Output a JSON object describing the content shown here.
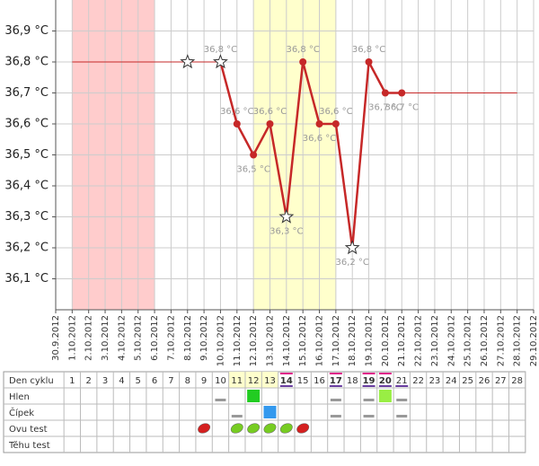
{
  "chart_data": {
    "type": "line",
    "categories": [
      "30.9.2012",
      "1.10.2012",
      "2.10.2012",
      "3.10.2012",
      "4.10.2012",
      "5.10.2012",
      "6.10.2012",
      "7.10.2012",
      "8.10.2012",
      "9.10.2012",
      "10.10.2012",
      "11.10.2012",
      "12.10.2012",
      "13.10.2012",
      "14.10.2012",
      "15.10.2012",
      "16.10.2012",
      "17.10.2012",
      "18.10.2012",
      "19.10.2012",
      "20.10.2012",
      "21.10.2012",
      "22.10.2012",
      "23.10.2012",
      "24.10.2012",
      "25.10.2012",
      "26.10.2012",
      "27.10.2012",
      "28.10.2012",
      "29.10.2012"
    ],
    "values": [
      null,
      null,
      null,
      null,
      null,
      null,
      null,
      null,
      36.8,
      null,
      36.8,
      36.6,
      36.5,
      36.6,
      36.3,
      36.8,
      36.6,
      36.6,
      36.2,
      36.8,
      36.7,
      36.7,
      null,
      null,
      null,
      null,
      null,
      null,
      null,
      null
    ],
    "value_labels": [
      null,
      null,
      null,
      null,
      null,
      null,
      null,
      null,
      null,
      null,
      "36,8 °C",
      "36,6 °C",
      "36,5 °C",
      "36,6 °C",
      "36,3 °C",
      "36,8 °C",
      "36,6 °C",
      "36,6 °C",
      "36,2 °C",
      "36,8 °C",
      "36,7 °C",
      "36,7 °C",
      null,
      null,
      null,
      null,
      null,
      null,
      null,
      null
    ],
    "markers": [
      null,
      null,
      null,
      null,
      null,
      null,
      null,
      null,
      "star",
      null,
      "star",
      "circle",
      "circle",
      "circle",
      "star",
      "circle",
      "circle",
      "circle",
      "star",
      "circle",
      "circle",
      "circle",
      null,
      null,
      null,
      null,
      null,
      null,
      null,
      null
    ],
    "color": "#c62828",
    "extension_lines": [
      {
        "from": "1.10.2012",
        "to": "10.10.2012",
        "value": 36.8
      },
      {
        "from": "21.10.2012",
        "to": "28.10.2012",
        "value": 36.7
      }
    ],
    "bands": [
      {
        "from": "1.10.2012",
        "to": "6.10.2012",
        "color": "#ffcccc"
      },
      {
        "from": "12.10.2012",
        "to": "17.10.2012",
        "color": "#ffffcc"
      }
    ],
    "ylim": [
      36.0,
      37.0
    ],
    "yticks": [
      {
        "value": 36.1,
        "label": "36,1 °C"
      },
      {
        "value": 36.2,
        "label": "36,2 °C"
      },
      {
        "value": 36.3,
        "label": "36,3 °C"
      },
      {
        "value": 36.4,
        "label": "36,4 °C"
      },
      {
        "value": 36.5,
        "label": "36,5 °C"
      },
      {
        "value": 36.6,
        "label": "36,6 °C"
      },
      {
        "value": 36.7,
        "label": "36,7 °C"
      },
      {
        "value": 36.8,
        "label": "36,8 °C"
      },
      {
        "value": 36.9,
        "label": "36,9 °C"
      }
    ],
    "grid": true
  },
  "table": {
    "header": {
      "label": "Den cyklu",
      "days": [
        1,
        2,
        3,
        4,
        5,
        6,
        7,
        8,
        9,
        10,
        11,
        12,
        13,
        14,
        15,
        16,
        17,
        18,
        19,
        20,
        21,
        22,
        23,
        24,
        25,
        26,
        27,
        28
      ]
    },
    "rows": [
      {
        "label": "Hlen"
      },
      {
        "label": "Čípek"
      },
      {
        "label": "Ovu test"
      },
      {
        "label": "Těhu test"
      }
    ]
  }
}
